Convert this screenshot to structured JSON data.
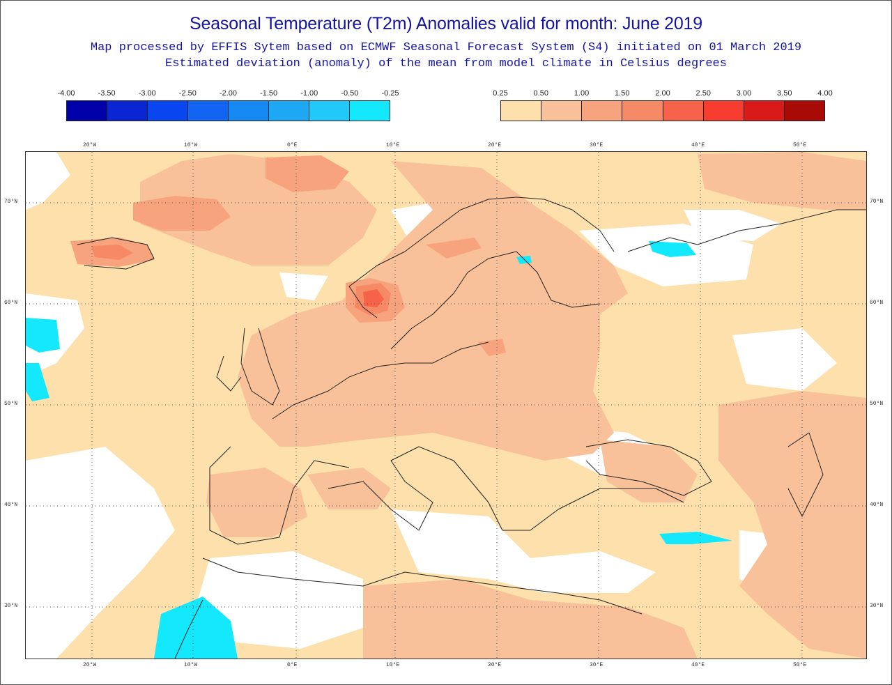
{
  "header": {
    "title": "Seasonal Temperature (T2m) Anomalies valid for month: June 2019",
    "subtitle_1": "Map processed by EFFIS Sytem based on ECMWF Seasonal Forecast System (S4) initiated on 01 March 2019",
    "subtitle_2": "Estimated deviation (anomaly) of the mean from model climate in Celsius degrees"
  },
  "legend_negative": {
    "labels": [
      "-4.00",
      "-3.50",
      "-3.00",
      "-2.50",
      "-2.00",
      "-1.50",
      "-1.00",
      "-0.50",
      "-0.25"
    ],
    "colors": [
      "#0000a8",
      "#0a26d2",
      "#0a46f0",
      "#1264f2",
      "#1688f2",
      "#1ea8f4",
      "#22c8f8",
      "#14e8fc"
    ]
  },
  "legend_positive": {
    "labels": [
      "0.25",
      "0.50",
      "1.00",
      "1.50",
      "2.00",
      "2.50",
      "3.00",
      "3.50",
      "4.00"
    ],
    "colors": [
      "#fde0ac",
      "#f9c19a",
      "#f7a47e",
      "#f78a66",
      "#f6634a",
      "#f63c2e",
      "#d81a18",
      "#a80a06"
    ]
  },
  "map": {
    "longitude_labels": [
      "20°W",
      "10°W",
      "0°E",
      "10°E",
      "20°E",
      "30°E",
      "40°E",
      "50°E"
    ],
    "latitude_labels": [
      "70°N",
      "60°N",
      "50°N",
      "40°N",
      "30°N"
    ],
    "colors": {
      "weak_warm": "#fde0ac",
      "warm": "#f9c19a",
      "warmer": "#f7a47e",
      "hot": "#f78a66",
      "hotspot": "#f6634a",
      "cool": "#14e8fc",
      "coastline": "#222222",
      "grid": "#555555"
    }
  }
}
